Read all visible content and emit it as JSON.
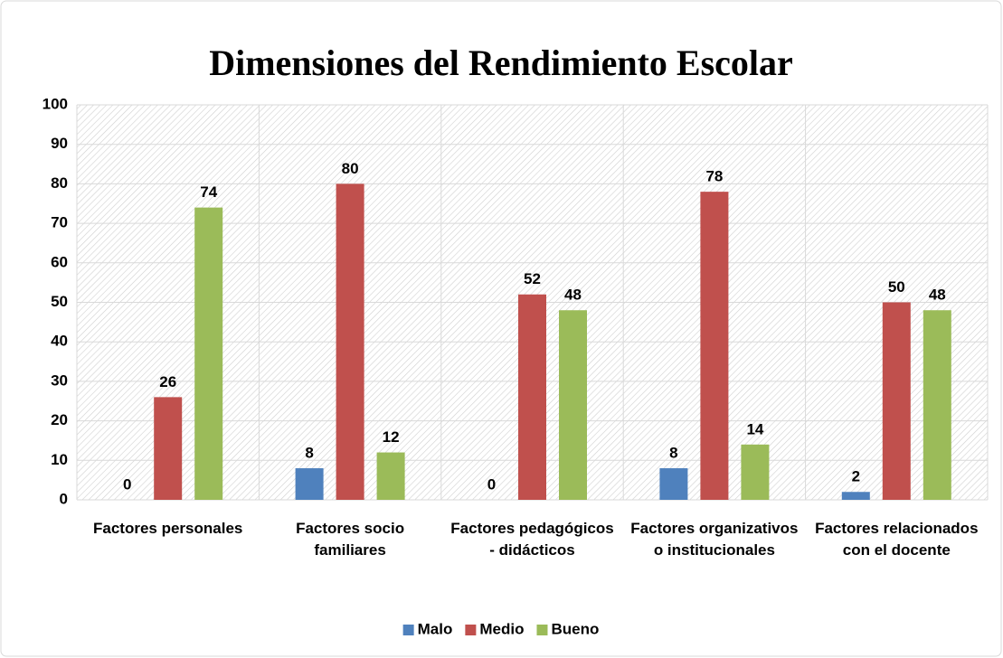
{
  "chart_data": {
    "type": "bar",
    "title": "Dimensiones del Rendimiento Escolar",
    "categories": [
      "Factores personales",
      "Factores socio familiares",
      "Factores pedagógicos - didácticos",
      "Factores organizativos o institucionales",
      "Factores relacionados con el docente"
    ],
    "series": [
      {
        "name": "Malo",
        "color": "#4f81bd",
        "values": [
          0,
          8,
          0,
          8,
          2
        ]
      },
      {
        "name": "Medio",
        "color": "#c0504d",
        "values": [
          26,
          80,
          52,
          78,
          50
        ]
      },
      {
        "name": "Bueno",
        "color": "#9bbb59",
        "values": [
          74,
          12,
          48,
          14,
          48
        ]
      }
    ],
    "ylim": [
      0,
      100
    ],
    "yticks": [
      0,
      10,
      20,
      30,
      40,
      50,
      60,
      70,
      80,
      90,
      100
    ],
    "grid": true,
    "legend": "bottom"
  }
}
